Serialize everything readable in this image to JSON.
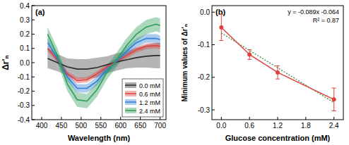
{
  "chart_data": [
    {
      "type": "line",
      "title": "(a)",
      "xlabel": "Wavelength (nm)",
      "ylabel": "Δr'ₙ",
      "x": [
        415,
        440,
        465,
        490,
        515,
        540,
        565,
        590,
        615,
        640,
        665,
        690,
        700
      ],
      "series": [
        {
          "name": "0.0 mM",
          "color": "#2b2b2b",
          "values": [
            0.03,
            0.0,
            -0.03,
            -0.045,
            -0.045,
            -0.035,
            -0.015,
            0.005,
            0.02,
            0.035,
            0.045,
            0.05,
            0.05
          ],
          "errors": [
            0.07,
            0.06,
            0.06,
            0.07,
            0.07,
            0.07,
            0.06,
            0.06,
            0.06,
            0.07,
            0.08,
            0.09,
            0.09
          ]
        },
        {
          "name": "0.6 mM",
          "color": "#e0413f",
          "values": [
            0.1,
            0.02,
            -0.08,
            -0.125,
            -0.12,
            -0.08,
            -0.03,
            0.01,
            0.05,
            0.09,
            0.115,
            0.12,
            0.115
          ],
          "errors": [
            0.02,
            0.02,
            0.02,
            0.02,
            0.02,
            0.02,
            0.02,
            0.02,
            0.02,
            0.02,
            0.02,
            0.02,
            0.02
          ]
        },
        {
          "name": "1.2 mM",
          "color": "#2f7fd6",
          "values": [
            0.14,
            0.03,
            -0.1,
            -0.18,
            -0.18,
            -0.13,
            -0.05,
            0.01,
            0.08,
            0.14,
            0.17,
            0.17,
            0.16
          ],
          "errors": [
            0.03,
            0.03,
            0.03,
            0.03,
            0.03,
            0.03,
            0.03,
            0.03,
            0.03,
            0.03,
            0.03,
            0.03,
            0.03
          ]
        },
        {
          "name": "2.4 mM",
          "color": "#2e9e57",
          "values": [
            0.2,
            0.05,
            -0.15,
            -0.26,
            -0.27,
            -0.19,
            -0.07,
            0.02,
            0.12,
            0.2,
            0.25,
            0.27,
            0.26
          ],
          "errors": [
            0.05,
            0.05,
            0.05,
            0.05,
            0.05,
            0.05,
            0.05,
            0.05,
            0.05,
            0.05,
            0.05,
            0.05,
            0.05
          ]
        }
      ],
      "xlim": [
        375,
        715
      ],
      "xticks": [
        400,
        450,
        500,
        550,
        600,
        650,
        700
      ],
      "ylim": [
        -0.4,
        0.4
      ],
      "yticks": [
        -0.4,
        -0.3,
        -0.2,
        -0.1,
        {
          "value": 0,
          "label": "0.0"
        },
        0.1,
        0.2,
        0.3,
        0.4
      ],
      "legend": "lower right",
      "grid": false
    },
    {
      "type": "line",
      "title": "(b)",
      "xlabel": "Glucose concentration (mM)",
      "ylabel": "Minimum values of Δr'ₙ",
      "x": [
        0,
        0.6,
        1.2,
        2.4
      ],
      "values": [
        -0.047,
        -0.13,
        -0.185,
        -0.268
      ],
      "errors": [
        0.04,
        0.015,
        0.02,
        0.035
      ],
      "color": "#e0413f",
      "marker": "circle",
      "line_style": "solid",
      "trendline": {
        "slope": -0.089,
        "intercept": -0.064,
        "color": "#3a8a4a",
        "line_style": "dotted"
      },
      "annotations": [
        "y = -0.089x -0.064",
        "R² = 0.87"
      ],
      "xlim": [
        -0.2,
        2.6
      ],
      "xticks": [
        {
          "value": 0,
          "label": "0.0"
        },
        0.6,
        1.2,
        1.8,
        2.4
      ],
      "ylim": [
        -0.33,
        0.02
      ],
      "yticks": [
        -0.3,
        -0.2,
        -0.1,
        {
          "value": 0,
          "label": "0.0"
        }
      ],
      "grid": false
    }
  ]
}
